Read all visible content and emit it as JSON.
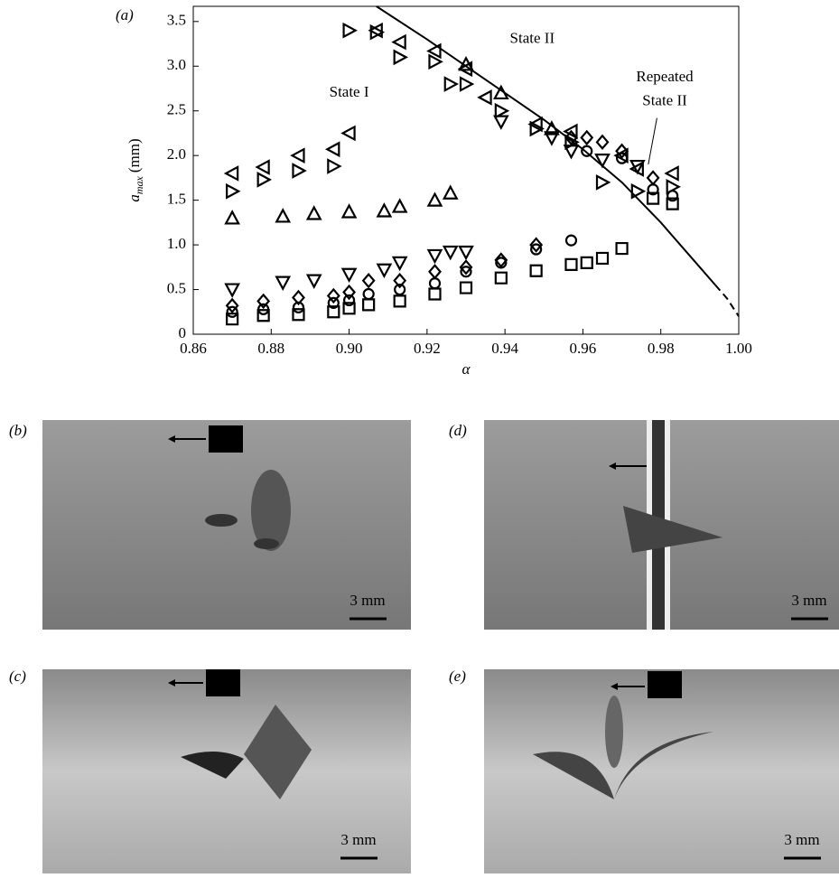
{
  "chart_data": {
    "type": "scatter",
    "panel_label": "(a)",
    "xlabel": "α",
    "ylabel": {
      "base": "a",
      "sub": "max",
      "unit": "(mm)"
    },
    "xlim": [
      0.86,
      1.0
    ],
    "ylim": [
      0,
      3.67
    ],
    "xticks": [
      0.86,
      0.88,
      {
        "value": 0.9,
        "label": "0.90"
      },
      0.92,
      0.94,
      0.96,
      0.98,
      {
        "value": 1.0,
        "label": "1.00"
      }
    ],
    "yticks": [
      0,
      0.5,
      {
        "value": 1.0,
        "label": "1.0"
      },
      1.5,
      {
        "value": 2.0,
        "label": "2.0"
      },
      2.5,
      {
        "value": 3.0,
        "label": "3.0"
      },
      3.5
    ],
    "annotations": [
      {
        "text": "State I",
        "x": 0.9,
        "y": 2.7
      },
      {
        "text": "State II",
        "x": 0.947,
        "y": 3.3
      },
      {
        "text": "Repeated",
        "x": 0.981,
        "y": 2.87
      },
      {
        "text": "State II",
        "x": 0.981,
        "y": 2.6
      }
    ],
    "series": [
      {
        "marker": "square",
        "color": "#000000",
        "x": [
          0.87,
          0.878,
          0.887,
          0.896,
          0.9,
          0.905,
          0.913,
          0.922,
          0.93,
          0.939,
          0.948,
          0.957,
          0.961,
          0.965,
          0.97,
          0.978,
          0.983
        ],
        "values": [
          0.17,
          0.21,
          0.22,
          0.25,
          0.29,
          0.33,
          0.37,
          0.45,
          0.52,
          0.63,
          0.71,
          0.78,
          0.8,
          0.85,
          0.96,
          1.52,
          1.46
        ]
      },
      {
        "marker": "circle",
        "color": "#000000",
        "x": [
          0.87,
          0.878,
          0.887,
          0.896,
          0.9,
          0.905,
          0.913,
          0.922,
          0.93,
          0.939,
          0.948,
          0.957,
          0.961,
          0.97,
          0.978,
          0.983
        ],
        "values": [
          0.25,
          0.28,
          0.3,
          0.35,
          0.38,
          0.45,
          0.5,
          0.57,
          0.7,
          0.8,
          0.95,
          1.05,
          2.05,
          1.97,
          1.62,
          1.55
        ]
      },
      {
        "marker": "diamond",
        "color": "#000000",
        "x": [
          0.87,
          0.878,
          0.887,
          0.896,
          0.9,
          0.905,
          0.913,
          0.922,
          0.93,
          0.939,
          0.948,
          0.957,
          0.961,
          0.965,
          0.97,
          0.978
        ],
        "values": [
          0.32,
          0.37,
          0.41,
          0.43,
          0.47,
          0.6,
          0.6,
          0.7,
          0.75,
          0.83,
          1.0,
          2.2,
          2.2,
          2.15,
          2.05,
          1.75
        ]
      },
      {
        "marker": "down",
        "color": "#000000",
        "x": [
          0.87,
          0.883,
          0.891,
          0.9,
          0.909,
          0.913,
          0.922,
          0.926,
          0.93,
          0.939,
          0.952,
          0.957,
          0.965,
          0.974
        ],
        "values": [
          0.5,
          0.58,
          0.6,
          0.67,
          0.72,
          0.8,
          0.88,
          0.92,
          0.92,
          2.38,
          2.2,
          2.05,
          1.95,
          1.88
        ]
      },
      {
        "marker": "up",
        "color": "#000000",
        "x": [
          0.87,
          0.883,
          0.891,
          0.9,
          0.909,
          0.913,
          0.922,
          0.926,
          0.93,
          0.939,
          0.952
        ],
        "values": [
          1.3,
          1.32,
          1.35,
          1.37,
          1.38,
          1.43,
          1.5,
          1.58,
          3.02,
          2.7,
          2.3
        ]
      },
      {
        "marker": "left",
        "color": "#000000",
        "x": [
          0.87,
          0.878,
          0.887,
          0.896,
          0.9,
          0.907,
          0.913,
          0.922,
          0.93,
          0.935,
          0.948,
          0.957,
          0.97,
          0.974,
          0.983
        ],
        "values": [
          1.8,
          1.87,
          2.0,
          2.07,
          2.25,
          3.4,
          3.27,
          3.17,
          2.97,
          2.65,
          2.35,
          2.27,
          2.0,
          1.85,
          1.8
        ]
      },
      {
        "marker": "right",
        "color": "#000000",
        "x": [
          0.87,
          0.878,
          0.887,
          0.896,
          0.9,
          0.907,
          0.913,
          0.922,
          0.926,
          0.93,
          0.939,
          0.948,
          0.957,
          0.965,
          0.974,
          0.983
        ],
        "values": [
          1.6,
          1.73,
          1.83,
          1.88,
          3.4,
          3.38,
          3.1,
          3.05,
          2.8,
          2.8,
          2.5,
          2.3,
          2.15,
          1.7,
          1.6,
          1.65
        ]
      },
      {
        "marker": "line",
        "color": "#000000",
        "x": [
          0.907,
          0.92,
          0.93,
          0.94,
          0.95,
          0.96,
          0.97,
          0.98,
          0.99,
          0.994
        ],
        "values": [
          3.67,
          3.3,
          3.0,
          2.7,
          2.4,
          2.07,
          1.7,
          1.25,
          0.75,
          0.55
        ]
      },
      {
        "marker": "dashed",
        "color": "#000000",
        "x": [
          0.994,
          0.997,
          1.0
        ],
        "values": [
          0.55,
          0.4,
          0.2
        ]
      }
    ]
  },
  "panels": [
    {
      "label": "(b)",
      "scale": "3 mm"
    },
    {
      "label": "(d)",
      "scale": "3 mm"
    },
    {
      "label": "(c)",
      "scale": "3 mm"
    },
    {
      "label": "(e)",
      "scale": "3 mm"
    }
  ]
}
